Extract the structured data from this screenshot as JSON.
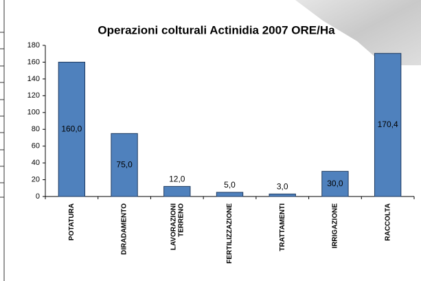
{
  "chart_data": {
    "type": "bar",
    "title": "Operazioni colturali Actinidia 2007 ORE/Ha",
    "categories": [
      "POTATURA",
      "DIRADAMENTO",
      "LAVORAZIONI TERRENO",
      "FERTILIZZAZIONE",
      "TRATTAMENTI",
      "IRRIGAZIONE",
      "RACCOLTA"
    ],
    "values": [
      160.0,
      75.0,
      12.0,
      5.0,
      3.0,
      30.0,
      170.4
    ],
    "value_labels": [
      "160,0",
      "75,0",
      "12,0",
      "5,0",
      "3,0",
      "30,0",
      "170,4"
    ],
    "color": "#4f81bd",
    "ylim": [
      0,
      180
    ],
    "yticks": [
      0,
      20,
      40,
      60,
      80,
      100,
      120,
      140,
      160,
      180
    ],
    "grid": false
  }
}
